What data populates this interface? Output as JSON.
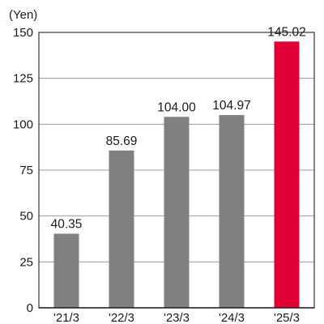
{
  "chart_data": {
    "type": "bar",
    "unit_label": "(Yen)",
    "categories": [
      "'21/3",
      "'22/3",
      "'23/3",
      "'24/3",
      "'25/3"
    ],
    "values": [
      40.35,
      85.69,
      104.0,
      104.97,
      145.02
    ],
    "value_labels": [
      "40.35",
      "85.69",
      "104.00",
      "104.97",
      "145.02"
    ],
    "yticks": [
      0,
      25,
      50,
      75,
      100,
      125,
      150
    ],
    "ylim": [
      0,
      150
    ],
    "grid": true,
    "colors": [
      "#808080",
      "#808080",
      "#808080",
      "#808080",
      "#e10036"
    ],
    "title": "",
    "xlabel": "",
    "ylabel": ""
  }
}
